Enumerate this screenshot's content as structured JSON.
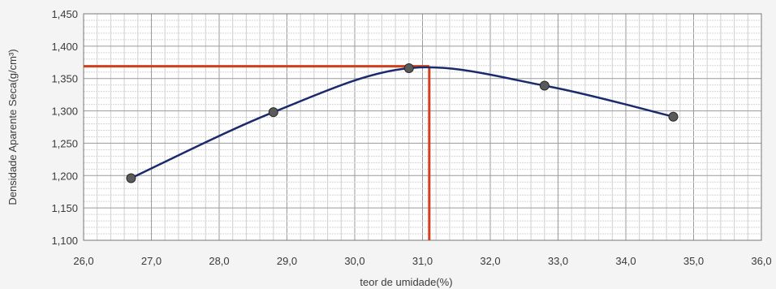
{
  "chart_data": {
    "type": "line",
    "xlabel": "teor de umidade(%)",
    "ylabel": "Densidade Aparente Seca(g/cm³)",
    "xlim": [
      26.0,
      36.0
    ],
    "ylim": [
      1.1,
      1.45
    ],
    "x_ticks": [
      "26,0",
      "27,0",
      "28,0",
      "29,0",
      "30,0",
      "31,0",
      "32,0",
      "33,0",
      "34,0",
      "35,0",
      "36,0"
    ],
    "y_ticks": [
      "1,100",
      "1,150",
      "1,200",
      "1,250",
      "1,300",
      "1,350",
      "1,400",
      "1,450"
    ],
    "grid": true,
    "series": [
      {
        "points": [
          {
            "x": 26.7,
            "y": 1.196
          },
          {
            "x": 28.8,
            "y": 1.298
          },
          {
            "x": 30.8,
            "y": 1.366
          },
          {
            "x": 32.8,
            "y": 1.339
          },
          {
            "x": 34.7,
            "y": 1.291
          }
        ],
        "color": "#1b2a6b"
      }
    ],
    "reference_point": {
      "x": 31.1,
      "y": 1.369,
      "color": "#d0401e"
    }
  }
}
